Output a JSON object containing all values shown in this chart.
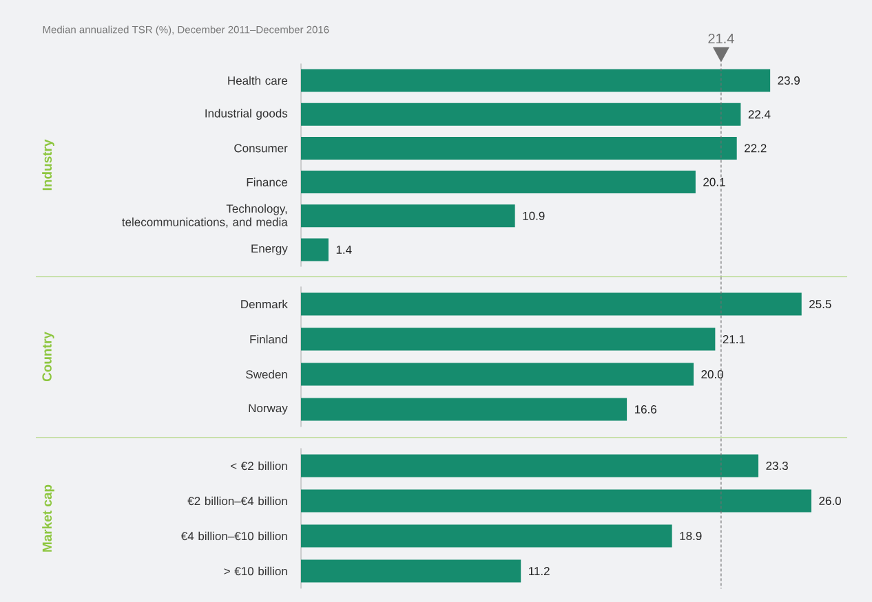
{
  "chart_data": [
    {
      "type": "bar",
      "orientation": "horizontal",
      "title": "Median annualized TSR (%), December 2011–December 2016",
      "ylabel": "Industry",
      "categories": [
        "Health care",
        "Industrial goods",
        "Consumer",
        "Finance",
        "Technology, telecommunications, and media",
        "Energy"
      ],
      "values": [
        23.9,
        22.4,
        22.2,
        20.1,
        10.9,
        1.4
      ],
      "color": "#168c6e",
      "tick_labels": "y",
      "value_labels": [
        "23.9",
        "22.4",
        "22.2",
        "20.1",
        "10.9",
        "1.4"
      ],
      "ref_lines": [
        {
          "axis": "x",
          "value": 21.4,
          "label": "21.4",
          "color": "#707070",
          "line_style": "dashed"
        }
      ]
    },
    {
      "type": "bar",
      "orientation": "horizontal",
      "ylabel": "Country",
      "categories": [
        "Denmark",
        "Finland",
        "Sweden",
        "Norway"
      ],
      "values": [
        25.5,
        21.1,
        20.0,
        16.6
      ],
      "color": "#168c6e",
      "tick_labels": "y",
      "value_labels": [
        "25.5",
        "21.1",
        "20.0",
        "16.6"
      ],
      "ref_lines": [
        {
          "axis": "x",
          "value": 21.4,
          "color": "#707070",
          "line_style": "dashed"
        }
      ]
    },
    {
      "type": "bar",
      "orientation": "horizontal",
      "ylabel": "Market cap",
      "categories": [
        "< €2 billion",
        "€2 billion–€4 billion",
        "€4 billion–€10 billion",
        "> €10 billion"
      ],
      "values": [
        23.3,
        26.0,
        18.9,
        11.2
      ],
      "color": "#168c6e",
      "tick_labels": "y",
      "value_labels": [
        "23.3",
        "26.0",
        "18.9",
        "11.2"
      ],
      "ref_lines": [
        {
          "axis": "x",
          "value": 21.4,
          "color": "#707070",
          "line_style": "dashed"
        }
      ]
    }
  ]
}
